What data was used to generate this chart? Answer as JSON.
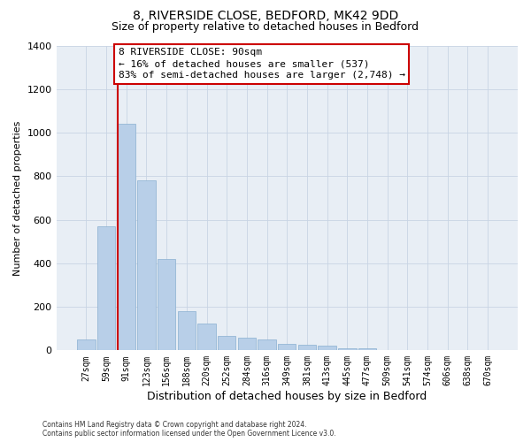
{
  "title_line1": "8, RIVERSIDE CLOSE, BEDFORD, MK42 9DD",
  "title_line2": "Size of property relative to detached houses in Bedford",
  "xlabel": "Distribution of detached houses by size in Bedford",
  "ylabel": "Number of detached properties",
  "categories": [
    "27sqm",
    "59sqm",
    "91sqm",
    "123sqm",
    "156sqm",
    "188sqm",
    "220sqm",
    "252sqm",
    "284sqm",
    "316sqm",
    "349sqm",
    "381sqm",
    "413sqm",
    "445sqm",
    "477sqm",
    "509sqm",
    "541sqm",
    "574sqm",
    "606sqm",
    "638sqm",
    "670sqm"
  ],
  "values": [
    50,
    570,
    1040,
    780,
    420,
    180,
    125,
    65,
    60,
    50,
    30,
    25,
    20,
    10,
    8,
    0,
    0,
    0,
    0,
    0,
    0
  ],
  "bar_color": "#b8cfe8",
  "bar_edge_color": "#8aafd0",
  "subject_bar_index": 2,
  "subject_line_color": "#cc0000",
  "annotation_line1": "8 RIVERSIDE CLOSE: 90sqm",
  "annotation_line2": "← 16% of detached houses are smaller (537)",
  "annotation_line3": "83% of semi-detached houses are larger (2,748) →",
  "annotation_box_color": "#ffffff",
  "annotation_box_edge": "#cc0000",
  "ylim": [
    0,
    1400
  ],
  "yticks": [
    0,
    200,
    400,
    600,
    800,
    1000,
    1200,
    1400
  ],
  "bg_color": "#e8eef5",
  "footer_line1": "Contains HM Land Registry data © Crown copyright and database right 2024.",
  "footer_line2": "Contains public sector information licensed under the Open Government Licence v3.0.",
  "title_fontsize": 10,
  "subtitle_fontsize": 9,
  "tick_fontsize": 7,
  "ylabel_fontsize": 8,
  "xlabel_fontsize": 9,
  "annotation_fontsize": 8
}
